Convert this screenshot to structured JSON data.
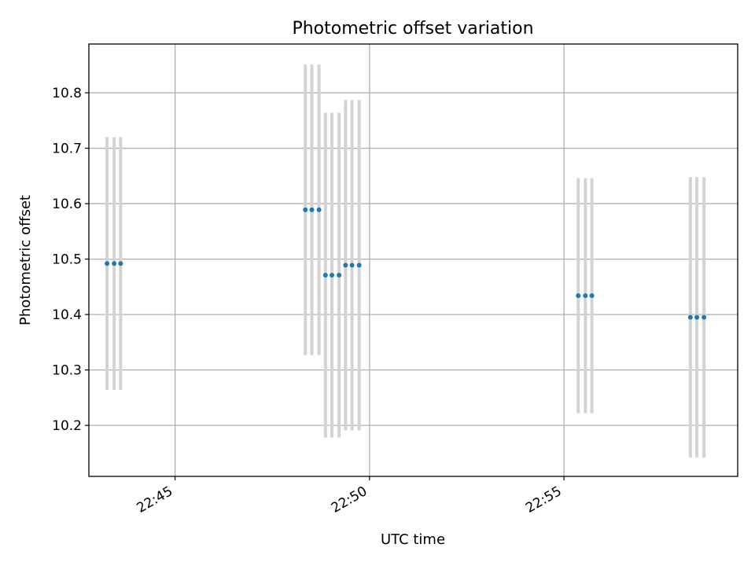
{
  "chart_data": {
    "type": "scatter",
    "title": "Photometric offset variation",
    "xlabel": "UTC time",
    "ylabel": "Photometric offset",
    "x_tick_labels": [
      "22:45",
      "22:50",
      "22:55"
    ],
    "y_tick_labels": [
      "10.2",
      "10.3",
      "10.4",
      "10.5",
      "10.6",
      "10.7",
      "10.8"
    ],
    "grid": true,
    "legend": "none",
    "errorbar_color": "#d3d3d3",
    "marker_color": "#1f77b4",
    "series": [
      {
        "points": [
          {
            "x": "22:43:15",
            "y": 10.492,
            "err": 0.228
          },
          {
            "x": "22:43:26",
            "y": 10.492,
            "err": 0.228
          },
          {
            "x": "22:43:36",
            "y": 10.492,
            "err": 0.228
          },
          {
            "x": "22:48:21",
            "y": 10.589,
            "err": 0.262
          },
          {
            "x": "22:48:31",
            "y": 10.589,
            "err": 0.262
          },
          {
            "x": "22:48:42",
            "y": 10.589,
            "err": 0.262
          },
          {
            "x": "22:48:52",
            "y": 10.471,
            "err": 0.293
          },
          {
            "x": "22:49:02",
            "y": 10.471,
            "err": 0.293
          },
          {
            "x": "22:49:13",
            "y": 10.471,
            "err": 0.293
          },
          {
            "x": "22:49:23",
            "y": 10.489,
            "err": 0.298
          },
          {
            "x": "22:49:33",
            "y": 10.489,
            "err": 0.298
          },
          {
            "x": "22:49:44",
            "y": 10.489,
            "err": 0.298
          },
          {
            "x": "22:55:22",
            "y": 10.434,
            "err": 0.212
          },
          {
            "x": "22:55:33",
            "y": 10.434,
            "err": 0.212
          },
          {
            "x": "22:55:43",
            "y": 10.434,
            "err": 0.212
          },
          {
            "x": "22:58:15",
            "y": 10.395,
            "err": 0.253
          },
          {
            "x": "22:58:25",
            "y": 10.395,
            "err": 0.253
          },
          {
            "x": "22:58:36",
            "y": 10.395,
            "err": 0.253
          }
        ]
      }
    ]
  }
}
